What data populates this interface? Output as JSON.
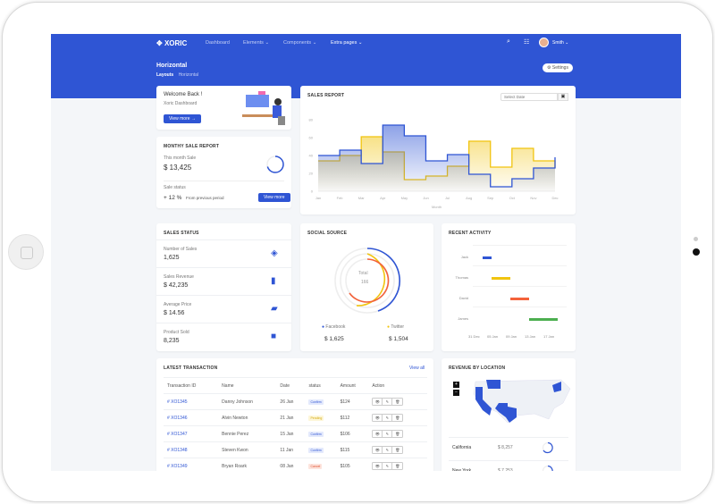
{
  "header": {
    "brand": "XORIC",
    "nav": [
      {
        "label": "Dashboard"
      },
      {
        "label": "Elements ⌄"
      },
      {
        "label": "Components ⌄"
      },
      {
        "label": "Extra pages ⌄"
      }
    ],
    "user": "Smith ⌄",
    "page_title": "Horizontal",
    "breadcrumb": [
      "Layouts",
      "Horizontal"
    ],
    "settings_label": "Settings"
  },
  "welcome": {
    "title": "Welcome Back !",
    "subtitle": "Xoric Dashboard",
    "button": "View more →"
  },
  "monthly": {
    "title": "MONTHY SALE REPORT",
    "this_month_label": "This month Sale",
    "this_month_value": "$ 13,425",
    "status_label": "Sale status",
    "status_value": "+ 12 %",
    "status_note": "From previous period",
    "button": "View more",
    "progress": 0.7
  },
  "sales_report": {
    "title": "SALES REPORT",
    "date_placeholder": "Select Date"
  },
  "chart_data": {
    "type": "line",
    "step": true,
    "title": "",
    "xlabel": "Month",
    "ylabel": "",
    "ylim": [
      0,
      80
    ],
    "yticks": [
      0,
      20,
      40,
      60,
      80
    ],
    "categories": [
      "Jan",
      "Feb",
      "Mar",
      "Apr",
      "May",
      "Jun",
      "Jul",
      "Aug",
      "Sep",
      "Oct",
      "Nov",
      "Dec"
    ],
    "series": [
      {
        "color": "#2f55d4",
        "values": [
          40,
          46,
          31,
          74,
          62,
          34,
          41,
          19,
          5,
          14,
          26,
          38
        ]
      },
      {
        "color": "#f1c40f",
        "values": [
          34,
          40,
          61,
          44,
          13,
          17,
          28,
          56,
          27,
          48,
          34,
          26
        ]
      }
    ]
  },
  "sales_status": {
    "title": "SALES STATUS",
    "items": [
      {
        "label": "Number of Sales",
        "value": "1,625",
        "icon": "layers-icon"
      },
      {
        "label": "Sales Revenue",
        "value": "$ 42,235",
        "icon": "bar-chart-icon"
      },
      {
        "label": "Average Price",
        "value": "$ 14.56",
        "icon": "tag-icon"
      },
      {
        "label": "Product Sold",
        "value": "8,235",
        "icon": "box-icon"
      }
    ]
  },
  "social": {
    "title": "SOCIAL SOURCE",
    "total_label": "Total",
    "total_value": "166",
    "items": [
      {
        "label": "Facebook",
        "value": "$ 1,625",
        "color": "#2f55d4"
      },
      {
        "label": "Twitter",
        "value": "$ 1,504",
        "color": "#f1c40f"
      }
    ]
  },
  "activity": {
    "title": "RECENT ACTIVITY",
    "people": [
      {
        "name": "Jack",
        "color": "#2f55d4"
      },
      {
        "name": "Thomas",
        "color": "#f1c40f"
      },
      {
        "name": "David",
        "color": "#f4623a"
      },
      {
        "name": "James",
        "color": "#4caf50"
      }
    ],
    "ticks": [
      "31 Dec",
      "05 Jan",
      "09 Jan",
      "13 Jan",
      "17 Jan"
    ]
  },
  "transactions": {
    "title": "LATEST TRANSACTION",
    "view_all": "View all",
    "columns": [
      "Transaction ID",
      "Name",
      "Date",
      "status",
      "Amount",
      "Action"
    ],
    "rows": [
      {
        "id": "# XO1345",
        "name": "Danny Johnson",
        "date": "26 Jan",
        "status": "Confirm",
        "amount": "$124"
      },
      {
        "id": "# XO1346",
        "name": "Alvin Newton",
        "date": "21 Jan",
        "status": "Pending",
        "amount": "$112"
      },
      {
        "id": "# XO1347",
        "name": "Bennie Perez",
        "date": "15 Jan",
        "status": "Confirm",
        "amount": "$106"
      },
      {
        "id": "# XO1348",
        "name": "Steven Kwon",
        "date": "11 Jan",
        "status": "Confirm",
        "amount": "$115"
      },
      {
        "id": "# XO1349",
        "name": "Bryan Roark",
        "date": "08 Jan",
        "status": "Cancel",
        "amount": "$105"
      }
    ]
  },
  "location": {
    "title": "REVENUE BY LOCATION",
    "zoom_in": "+",
    "zoom_out": "−",
    "items": [
      {
        "state": "California",
        "value": "$ 8,257"
      },
      {
        "state": "New York",
        "value": "$ 7,253"
      }
    ]
  }
}
